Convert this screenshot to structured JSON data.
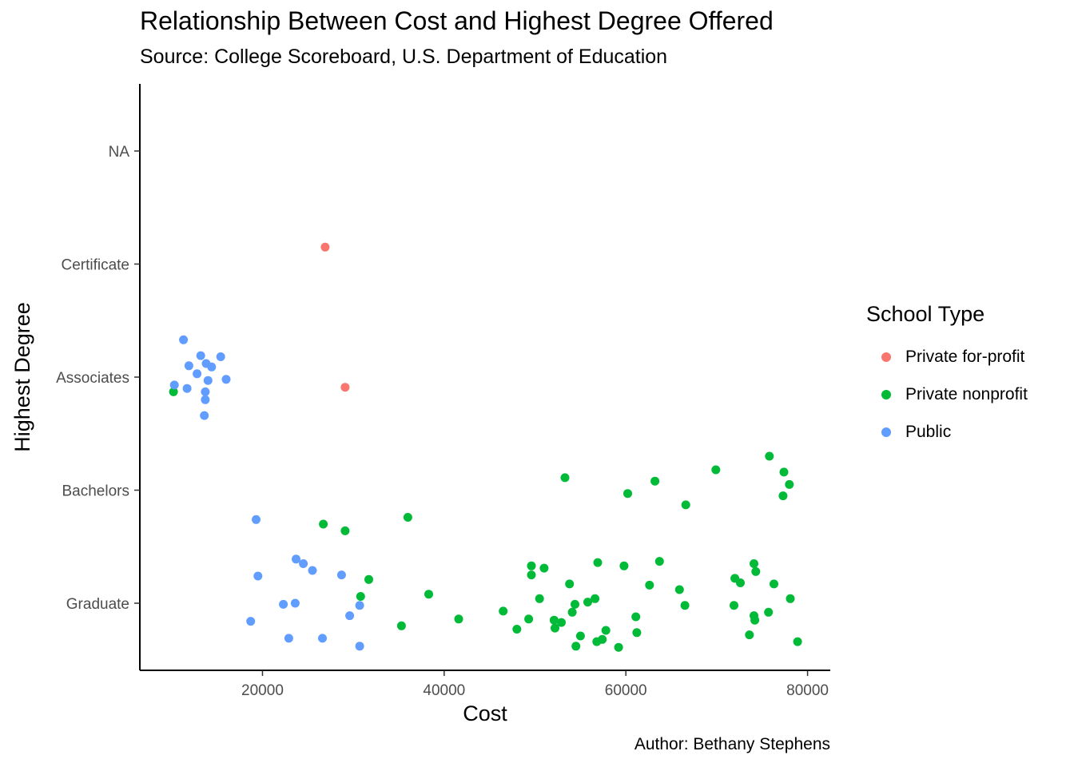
{
  "chart_data": {
    "type": "scatter",
    "title": "Relationship Between Cost and Highest Degree Offered",
    "subtitle": "Source: College Scoreboard, U.S. Department of Education",
    "caption": "Author: Bethany Stephens",
    "xlabel": "Cost",
    "ylabel": "Highest Degree",
    "xlim": [
      6500,
      82500
    ],
    "x_ticks": [
      20000,
      40000,
      60000,
      80000
    ],
    "x_tick_labels": [
      "20000",
      "40000",
      "60000",
      "80000"
    ],
    "y_categories": [
      "Graduate",
      "Bachelors",
      "Associates",
      "Certificate",
      "NA"
    ],
    "grid": false,
    "jitter": true,
    "legend": {
      "title": "School Type",
      "position": "right"
    },
    "series": [
      {
        "name": "Private for-profit",
        "color": "#F8766D",
        "points": [
          {
            "x": 26900,
            "y": 4.15
          },
          {
            "x": 29100,
            "y": 2.91
          }
        ]
      },
      {
        "name": "Private nonprofit",
        "color": "#00BA38",
        "points": [
          {
            "x": 10200,
            "y": 2.87
          },
          {
            "x": 26700,
            "y": 1.7
          },
          {
            "x": 29100,
            "y": 1.64
          },
          {
            "x": 36000,
            "y": 1.76
          },
          {
            "x": 53300,
            "y": 2.11
          },
          {
            "x": 60200,
            "y": 1.97
          },
          {
            "x": 63200,
            "y": 2.08
          },
          {
            "x": 66600,
            "y": 1.87
          },
          {
            "x": 69900,
            "y": 2.18
          },
          {
            "x": 75800,
            "y": 2.3
          },
          {
            "x": 77400,
            "y": 2.16
          },
          {
            "x": 78000,
            "y": 2.05
          },
          {
            "x": 77300,
            "y": 1.95
          },
          {
            "x": 31700,
            "y": 1.21
          },
          {
            "x": 30800,
            "y": 1.06
          },
          {
            "x": 38300,
            "y": 1.08
          },
          {
            "x": 35300,
            "y": 0.8
          },
          {
            "x": 41600,
            "y": 0.86
          },
          {
            "x": 46500,
            "y": 0.93
          },
          {
            "x": 48000,
            "y": 0.77
          },
          {
            "x": 49300,
            "y": 0.86
          },
          {
            "x": 49600,
            "y": 1.33
          },
          {
            "x": 49600,
            "y": 1.25
          },
          {
            "x": 50500,
            "y": 1.04
          },
          {
            "x": 51000,
            "y": 1.31
          },
          {
            "x": 52100,
            "y": 0.85
          },
          {
            "x": 52200,
            "y": 0.78
          },
          {
            "x": 52900,
            "y": 0.83
          },
          {
            "x": 53800,
            "y": 1.17
          },
          {
            "x": 54100,
            "y": 0.92
          },
          {
            "x": 54400,
            "y": 0.99
          },
          {
            "x": 54500,
            "y": 0.62
          },
          {
            "x": 55000,
            "y": 0.71
          },
          {
            "x": 55800,
            "y": 1.01
          },
          {
            "x": 56600,
            "y": 1.04
          },
          {
            "x": 56900,
            "y": 1.36
          },
          {
            "x": 56800,
            "y": 0.66
          },
          {
            "x": 57400,
            "y": 0.68
          },
          {
            "x": 57800,
            "y": 0.76
          },
          {
            "x": 59200,
            "y": 0.61
          },
          {
            "x": 59800,
            "y": 1.33
          },
          {
            "x": 61100,
            "y": 0.88
          },
          {
            "x": 61200,
            "y": 0.74
          },
          {
            "x": 62600,
            "y": 1.16
          },
          {
            "x": 63700,
            "y": 1.37
          },
          {
            "x": 65900,
            "y": 1.12
          },
          {
            "x": 66500,
            "y": 0.98
          },
          {
            "x": 71900,
            "y": 0.98
          },
          {
            "x": 72000,
            "y": 1.22
          },
          {
            "x": 72600,
            "y": 1.18
          },
          {
            "x": 73600,
            "y": 0.72
          },
          {
            "x": 74100,
            "y": 1.35
          },
          {
            "x": 74300,
            "y": 1.28
          },
          {
            "x": 74100,
            "y": 0.89
          },
          {
            "x": 74200,
            "y": 0.85
          },
          {
            "x": 75700,
            "y": 0.92
          },
          {
            "x": 76300,
            "y": 1.17
          },
          {
            "x": 78100,
            "y": 1.04
          },
          {
            "x": 78900,
            "y": 0.66
          }
        ]
      },
      {
        "name": "Public",
        "color": "#619CFF",
        "points": [
          {
            "x": 11300,
            "y": 3.33
          },
          {
            "x": 13200,
            "y": 3.19
          },
          {
            "x": 15400,
            "y": 3.18
          },
          {
            "x": 11900,
            "y": 3.1
          },
          {
            "x": 13800,
            "y": 3.12
          },
          {
            "x": 14400,
            "y": 3.09
          },
          {
            "x": 12800,
            "y": 3.03
          },
          {
            "x": 14000,
            "y": 2.97
          },
          {
            "x": 16000,
            "y": 2.98
          },
          {
            "x": 10300,
            "y": 2.93
          },
          {
            "x": 11700,
            "y": 2.9
          },
          {
            "x": 13700,
            "y": 2.87
          },
          {
            "x": 13700,
            "y": 2.8
          },
          {
            "x": 13600,
            "y": 2.66
          },
          {
            "x": 19300,
            "y": 1.74
          },
          {
            "x": 19500,
            "y": 1.24
          },
          {
            "x": 23700,
            "y": 1.39
          },
          {
            "x": 24500,
            "y": 1.35
          },
          {
            "x": 25500,
            "y": 1.29
          },
          {
            "x": 28700,
            "y": 1.25
          },
          {
            "x": 22300,
            "y": 0.99
          },
          {
            "x": 23600,
            "y": 1.0
          },
          {
            "x": 30700,
            "y": 0.98
          },
          {
            "x": 29600,
            "y": 0.89
          },
          {
            "x": 18700,
            "y": 0.84
          },
          {
            "x": 22900,
            "y": 0.69
          },
          {
            "x": 26600,
            "y": 0.69
          },
          {
            "x": 30700,
            "y": 0.62
          }
        ]
      }
    ]
  }
}
